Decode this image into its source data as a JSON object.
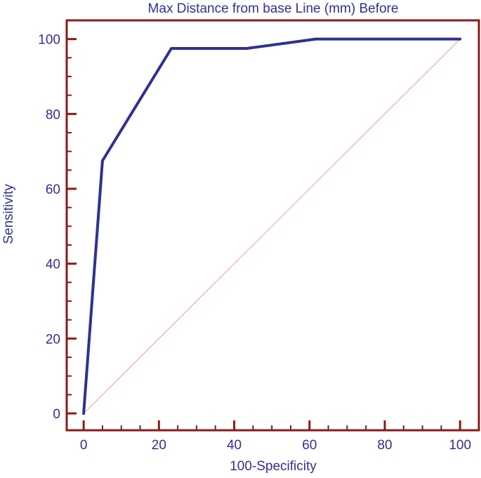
{
  "colors": {
    "frame": "#8b1a1a",
    "curve": "#2e3192",
    "diagonal": "#e8a0a0",
    "text": "#2e3192"
  },
  "chart_data": {
    "type": "line",
    "title": "Max Distance from base Line (mm) Before",
    "xlabel": "100-Specificity",
    "ylabel": "Sensitivity",
    "xlim": [
      -4.5,
      105
    ],
    "ylim": [
      -4.5,
      105
    ],
    "x_ticks": [
      0,
      20,
      40,
      60,
      80,
      100
    ],
    "y_ticks": [
      0,
      20,
      40,
      60,
      80,
      100
    ],
    "minor_tick_step": 5,
    "grid": false,
    "legend": "none",
    "series": [
      {
        "x": [
          0,
          5,
          23.3,
          43.3,
          61.7,
          100
        ],
        "y": [
          0,
          67.5,
          97.5,
          97.5,
          100,
          100
        ]
      },
      {
        "x": [
          0,
          100
        ],
        "y": [
          0,
          100
        ]
      }
    ]
  }
}
